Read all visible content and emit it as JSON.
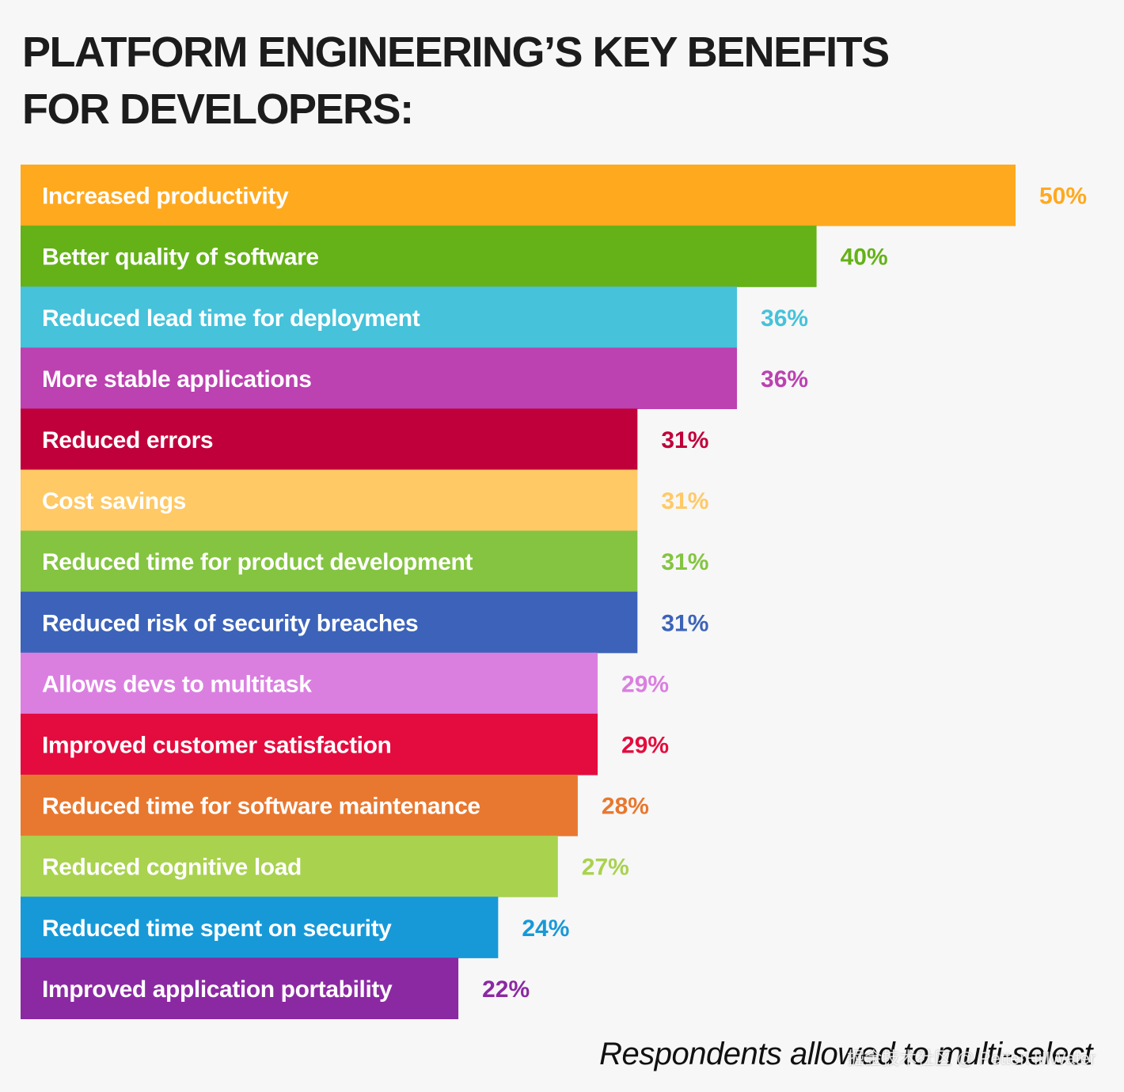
{
  "chart_data": {
    "type": "bar",
    "orientation": "horizontal",
    "title": "PLATFORM ENGINEERING’S KEY BENEFITS FOR DEVELOPERS:",
    "unit": "%",
    "xlim": [
      0,
      50
    ],
    "categories": [
      "Increased productivity",
      "Better quality of software",
      "Reduced lead time for deployment",
      "More stable applications",
      "Reduced errors",
      "Cost savings",
      "Reduced time for product development",
      "Reduced risk of security breaches",
      "Allows devs to multitask",
      "Improved customer satisfaction",
      "Reduced time for software maintenance",
      "Reduced cognitive load",
      "Reduced time spent on security",
      "Improved application portability"
    ],
    "values": [
      50,
      40,
      36,
      36,
      31,
      31,
      31,
      31,
      29,
      29,
      28,
      27,
      24,
      22
    ],
    "value_labels": [
      "50%",
      "40%",
      "36%",
      "36%",
      "31%",
      "31%",
      "31%",
      "31%",
      "29%",
      "29%",
      "28%",
      "27%",
      "24%",
      "22%"
    ],
    "colors": [
      "#ffa91f",
      "#64b217",
      "#46c2da",
      "#bc41b1",
      "#c0003a",
      "#ffc966",
      "#84c441",
      "#3c63b9",
      "#da7fe0",
      "#e40c3e",
      "#e8782f",
      "#a9d24e",
      "#1799d8",
      "#8b29a2"
    ],
    "footnote": "Respondents allowed to multi-select"
  },
  "watermark": "掘金技术社区 @ PetterHillWater"
}
